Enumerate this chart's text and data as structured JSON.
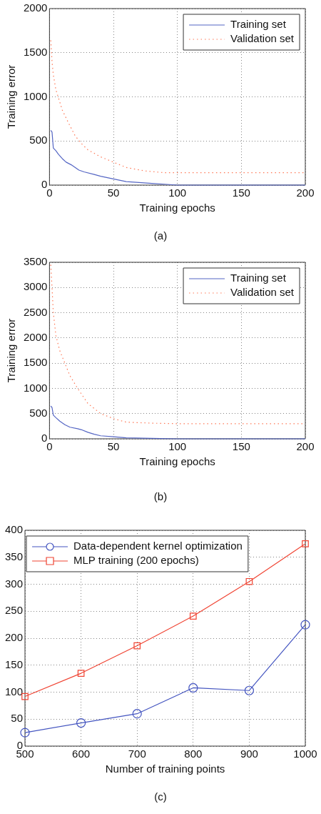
{
  "chart_data": [
    {
      "type": "line",
      "xlabel": "Training epochs",
      "ylabel": "Training error",
      "annotations": [
        "(a)"
      ],
      "xlim": [
        0,
        200
      ],
      "xticks": [
        0,
        50,
        100,
        150,
        200
      ],
      "ylim": [
        0,
        2000
      ],
      "yticks": [
        0,
        500,
        1000,
        1500,
        2000
      ],
      "grid": true,
      "legend": "top right",
      "series": [
        {
          "name": "Training set",
          "color": "#5566c4",
          "line_style": "solid",
          "x": [
            1,
            2,
            3,
            5,
            7,
            10,
            13,
            17,
            20,
            23,
            27,
            35,
            40,
            50,
            60,
            70,
            80,
            90,
            100,
            120,
            150,
            200
          ],
          "values": [
            620,
            600,
            420,
            390,
            350,
            300,
            260,
            230,
            200,
            170,
            150,
            120,
            100,
            70,
            40,
            30,
            20,
            10,
            0,
            0,
            0,
            0
          ]
        },
        {
          "name": "Validation set",
          "color": "#ff7755",
          "line_style": "dotted",
          "x": [
            1,
            2,
            3,
            5,
            7,
            10,
            15,
            20,
            25,
            30,
            40,
            50,
            60,
            75,
            90,
            100,
            150,
            200
          ],
          "values": [
            1640,
            1400,
            1250,
            1080,
            990,
            850,
            700,
            560,
            470,
            400,
            320,
            260,
            200,
            160,
            140,
            140,
            140,
            140
          ]
        }
      ]
    },
    {
      "type": "line",
      "xlabel": "Training epochs",
      "ylabel": "Training error",
      "annotations": [
        "(b)"
      ],
      "xlim": [
        0,
        200
      ],
      "xticks": [
        0,
        50,
        100,
        150,
        200
      ],
      "ylim": [
        0,
        3500
      ],
      "yticks": [
        0,
        500,
        1000,
        1500,
        2000,
        2500,
        3000,
        3500
      ],
      "grid": true,
      "legend": "top right",
      "series": [
        {
          "name": "Training set",
          "color": "#5566c4",
          "line_style": "solid",
          "x": [
            1,
            2,
            3,
            5,
            8,
            12,
            16,
            22,
            25,
            30,
            35,
            40,
            50,
            60,
            80,
            100,
            150,
            200
          ],
          "values": [
            650,
            620,
            470,
            420,
            350,
            280,
            230,
            200,
            180,
            130,
            90,
            60,
            40,
            20,
            10,
            0,
            0,
            0
          ]
        },
        {
          "name": "Validation set",
          "color": "#ff7755",
          "line_style": "dotted",
          "x": [
            1,
            2,
            3,
            5,
            8,
            12,
            16,
            22,
            30,
            40,
            50,
            60,
            80,
            100,
            150,
            200
          ],
          "values": [
            3450,
            3000,
            2500,
            2050,
            1750,
            1500,
            1250,
            1000,
            700,
            500,
            400,
            330,
            310,
            300,
            300,
            300
          ]
        }
      ]
    },
    {
      "type": "line",
      "xlabel": "Number of training points",
      "annotations": [
        "(c)"
      ],
      "xlim": [
        500,
        1000
      ],
      "xticks": [
        500,
        600,
        700,
        800,
        900,
        1000
      ],
      "ylim": [
        0,
        400
      ],
      "yticks": [
        0,
        50,
        100,
        150,
        200,
        250,
        300,
        350,
        400
      ],
      "grid": true,
      "legend": "top left",
      "x": [
        500,
        600,
        700,
        800,
        900,
        1000
      ],
      "series": [
        {
          "name": "Data-dependent kernel optimization",
          "color": "#4455c0",
          "line_style": "solid",
          "marker": "circle",
          "values": [
            25,
            43,
            60,
            108,
            103,
            225
          ]
        },
        {
          "name": "MLP training (200 epochs)",
          "color": "#f04433",
          "line_style": "solid",
          "marker": "square",
          "values": [
            92,
            135,
            186,
            241,
            305,
            375
          ]
        }
      ]
    }
  ]
}
